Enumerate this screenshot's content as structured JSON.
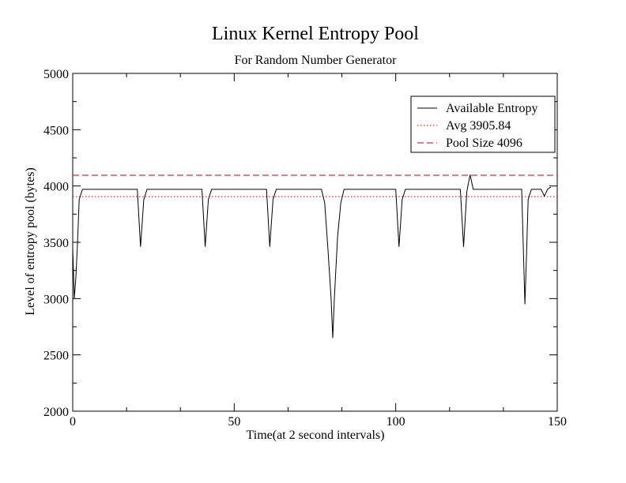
{
  "chart_data": {
    "type": "line",
    "title": "Linux Kernel Entropy Pool",
    "subtitle": "For Random Number Generator",
    "xlabel": "Time(at 2 second intervals)",
    "ylabel": "Level of entropy pool (bytes)",
    "xlim": [
      0,
      150
    ],
    "ylim": [
      2000,
      5000
    ],
    "x_ticks": [
      0,
      50,
      100,
      150
    ],
    "y_ticks": [
      2000,
      2500,
      3000,
      3500,
      4000,
      4500,
      5000
    ],
    "grid": false,
    "legend_position": "top-right",
    "series": [
      {
        "name": "Available Entropy",
        "style": "solid",
        "color": "#000000",
        "x": [
          0,
          0.5,
          1,
          1.5,
          2,
          3,
          4,
          10,
          15,
          20,
          21,
          22,
          23,
          30,
          40,
          41,
          42,
          43,
          50,
          60,
          61,
          62,
          63,
          70,
          77,
          78,
          79,
          80,
          80.5,
          81,
          82,
          83,
          84,
          85,
          90,
          100,
          101,
          102,
          103,
          110,
          120,
          121,
          121.5,
          122,
          123,
          124,
          125,
          130,
          135,
          139,
          140,
          140.5,
          141,
          142,
          145,
          146,
          147,
          148
        ],
        "values": [
          3450,
          3000,
          3200,
          3500,
          3880,
          3970,
          3970,
          3970,
          3970,
          3970,
          3460,
          3880,
          3970,
          3970,
          3970,
          3460,
          3880,
          3970,
          3970,
          3970,
          3460,
          3880,
          3970,
          3970,
          3970,
          3850,
          3450,
          3000,
          2650,
          3000,
          3550,
          3850,
          3970,
          3970,
          3970,
          3970,
          3460,
          3880,
          3970,
          3970,
          3970,
          3460,
          3700,
          3950,
          4100,
          3970,
          3970,
          3970,
          3970,
          3970,
          2950,
          3400,
          3880,
          3970,
          3970,
          3910,
          3970,
          3990
        ]
      },
      {
        "name": "Avg 3905.84",
        "style": "dotted",
        "color": "#e03030",
        "x": [
          0,
          150
        ],
        "values": [
          3905.84,
          3905.84
        ]
      },
      {
        "name": "Pool Size 4096",
        "style": "dashed",
        "color": "#e03030",
        "x": [
          0,
          150
        ],
        "values": [
          4096,
          4096
        ]
      }
    ]
  }
}
